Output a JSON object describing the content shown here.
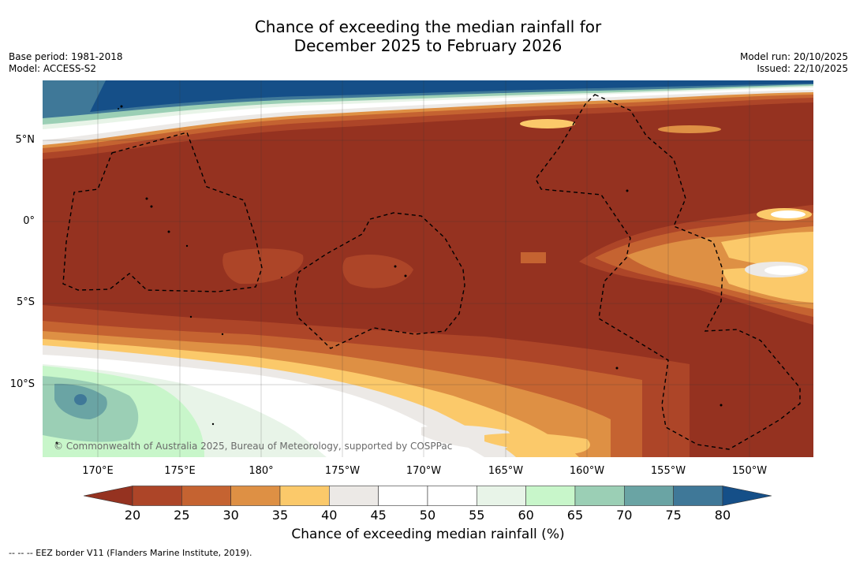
{
  "title": {
    "line1": "Chance of exceeding the median rainfall for",
    "line2": "December 2025 to February 2026"
  },
  "meta_left": {
    "base_period": "Base period: 1981-2018",
    "model": "Model: ACCESS-S2"
  },
  "meta_right": {
    "model_run": "Model run: 20/10/2025",
    "issued": "Issued: 22/10/2025"
  },
  "axes": {
    "lat_labels": [
      "5°N",
      "0°",
      "5°S",
      "10°S"
    ],
    "lon_labels": [
      "170°E",
      "175°E",
      "180°",
      "175°W",
      "170°W",
      "165°W",
      "160°W",
      "155°W",
      "150°W"
    ]
  },
  "colorbar": {
    "ticks": [
      "20",
      "25",
      "30",
      "35",
      "40",
      "45",
      "50",
      "55",
      "60",
      "65",
      "70",
      "75",
      "80"
    ],
    "label": "Chance of exceeding median rainfall (%)",
    "colors": {
      "below_20": "#953220",
      "c20_25": "#ad4528",
      "c25_30": "#c56331",
      "c30_35": "#de9044",
      "c35_40": "#fbc96a",
      "c40_45": "#ece9e6",
      "c45_50": "#ffffff",
      "c50_55": "#ffffff",
      "c55_60": "#e8f4e8",
      "c60_65": "#c8f6ca",
      "c65_70": "#9bcfb5",
      "c70_75": "#6aa4a4",
      "c75_80": "#3f7898",
      "above_80": "#154f88"
    }
  },
  "copyright": "© Commonwealth of Australia 2025, Bureau of Meteorology, supported by COSPPac",
  "footnote": "-- -- -- EEZ border V11 (Flanders Marine Institute, 2019)."
}
